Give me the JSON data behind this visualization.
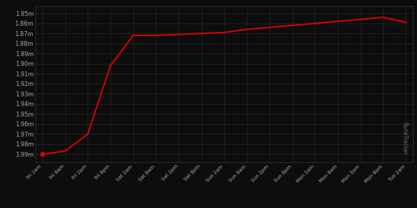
{
  "background_color": "#0d0d0d",
  "grid_color": "#2a2a2a",
  "line_color": "#dd0000",
  "title_color": "#ff1111",
  "subtitle_color": "#cc2222",
  "tick_color": "#aaaaaa",
  "x_labels": [
    "Fri 2am",
    "Fri 8am",
    "Fri 2pm",
    "Fri 8pm",
    "Sat 2am",
    "Sat 8am",
    "Sat 2pm",
    "Sat 8pm",
    "Sun 2am",
    "Sun 8am",
    "Sun 2pm",
    "Sun 8pm",
    "Mon 2am",
    "Mon 8am",
    "Mon 2pm",
    "Mon 8pm",
    "Tue 2am"
  ],
  "y_values": [
    1990000,
    1987000,
    1970000,
    1902000,
    1872000,
    1872000,
    1871000,
    1870000,
    1869000,
    1866000,
    1864000,
    1862000,
    1860000,
    1858000,
    1856000,
    1854000,
    1859000
  ],
  "y_ticks": [
    1850000,
    1860000,
    1870000,
    1880000,
    1890000,
    1900000,
    1910000,
    1920000,
    1930000,
    1940000,
    1950000,
    1960000,
    1970000,
    1980000,
    1990000
  ],
  "y_tick_labels": [
    "1.85m",
    "1.86m",
    "1.87m",
    "1.88m",
    "1.89m",
    "1.90m",
    "1.91m",
    "1.92m",
    "1.93m",
    "1.94m",
    "1.95m",
    "1.96m",
    "1.97m",
    "1.98m",
    "1.99m"
  ],
  "ylim_min": 1843000,
  "ylim_max": 1998000,
  "watermark": "RuneTracker"
}
